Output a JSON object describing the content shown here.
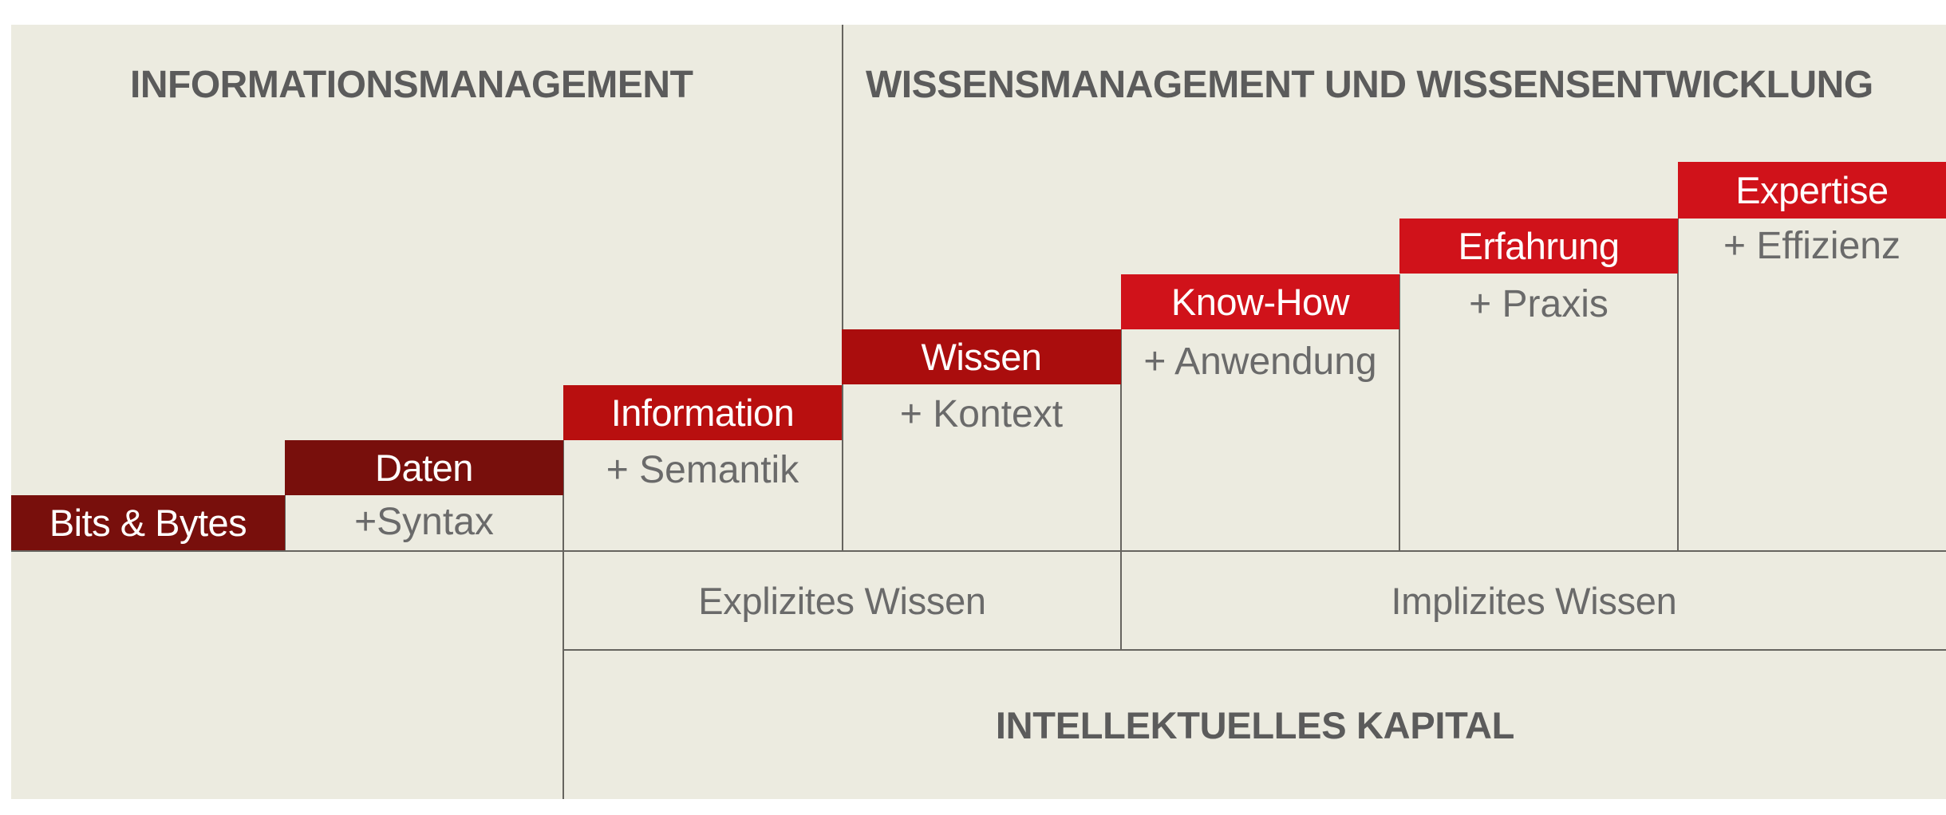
{
  "headings": {
    "left": "INFORMATIONSMANAGEMENT",
    "right": "WISSENSMANAGEMENT UND WISSENSENTWICKLUNG"
  },
  "stairs": [
    {
      "label": "Bits & Bytes",
      "addition": "",
      "color": "#780f0c"
    },
    {
      "label": "Daten",
      "addition": "+Syntax",
      "color": "#780f0c"
    },
    {
      "label": "Information",
      "addition": "+ Semantik",
      "color": "#b80f0f"
    },
    {
      "label": "Wissen",
      "addition": "+ Kontext",
      "color": "#aa0d0d"
    },
    {
      "label": "Know-How",
      "addition": "+ Anwendung",
      "color": "#d0121a"
    },
    {
      "label": "Erfahrung",
      "addition": "+ Praxis",
      "color": "#d0121a"
    },
    {
      "label": "Expertise",
      "addition": "+ Effizienz",
      "color": "#d0121a"
    }
  ],
  "bands": {
    "explicit": "Explizites Wissen",
    "implicit": "Implizites Wissen"
  },
  "capital": "INTELLEKTUELLES KAPITAL"
}
